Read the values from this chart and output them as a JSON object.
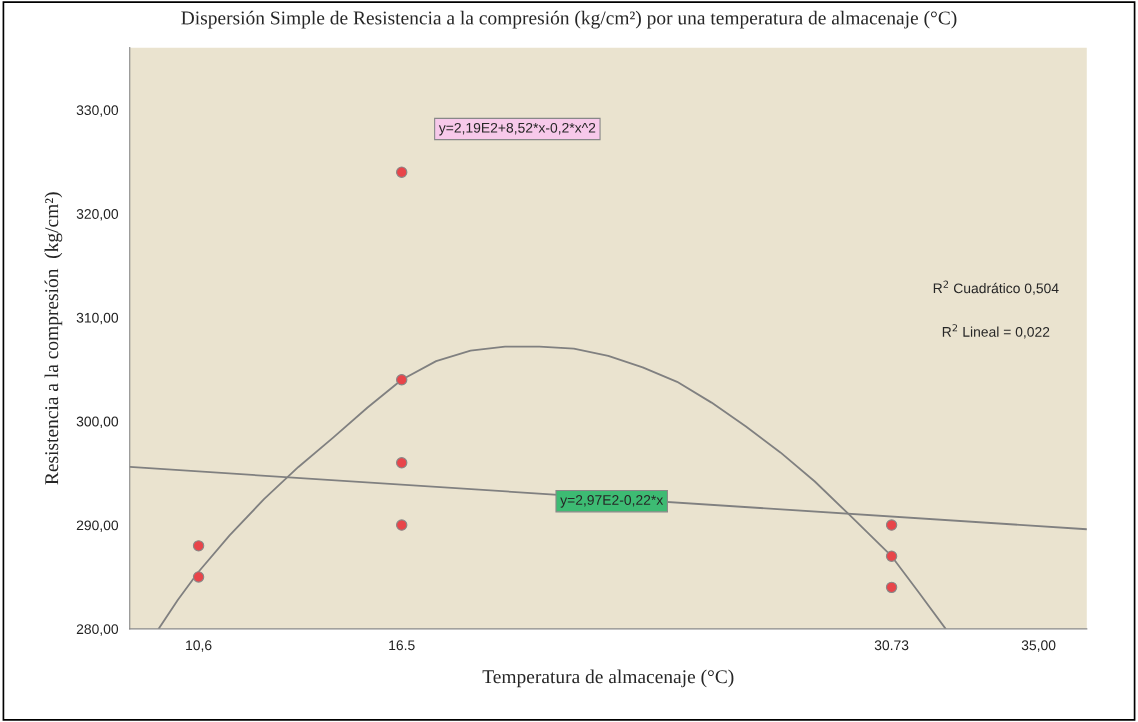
{
  "chart_data": {
    "type": "scatter",
    "title": "Dispersión Simple de Resistencia a la compresión (kg/cm²) por una temperatura de almacenaje (°C)",
    "xlabel": "Temperatura de almacenaje (°C)",
    "ylabel": "Resistencia a la compresión  (kg/cm²)",
    "series": [
      {
        "color": "#e8454a",
        "marker": "circle",
        "x": [
          10.6,
          10.6,
          16.5,
          16.5,
          16.5,
          16.5,
          30.73,
          30.73,
          30.73
        ],
        "values": [
          288,
          285,
          324,
          304,
          296,
          290,
          290,
          287,
          284
        ]
      },
      {
        "type": "line",
        "color": "#808080",
        "x": [
          9.44,
          10,
          10.6,
          11.5,
          12.5,
          13.5,
          14.5,
          15.5,
          16.5,
          17.5,
          18.5,
          19.5,
          20.5,
          21.5,
          22.5,
          23.5,
          24.5,
          25.5,
          26.5,
          27.5,
          28.5,
          29.5,
          30.73,
          31.5,
          32.3
        ],
        "values": [
          280,
          282.8,
          285.5,
          289,
          292.5,
          295.6,
          298.4,
          301.3,
          304,
          305.8,
          306.8,
          307.2,
          307.2,
          307,
          306.3,
          305.2,
          303.8,
          301.8,
          299.5,
          297,
          294.2,
          291,
          287,
          283.6,
          280
        ]
      },
      {
        "type": "line",
        "color": "#808080",
        "x": [
          8.6,
          36.4
        ],
        "values": [
          295.6,
          289.6
        ]
      }
    ],
    "annotations": [
      "y=2,19E2+8,52*x-0,2*x^2",
      {
        "text": "y=2,97E2-0,22*x",
        "x": 22.6,
        "y": 292.3
      },
      "R$^{2}$ Cuadrático 0,504",
      "R$^{2}$ Lineal = 0,022"
    ],
    "xlim": [
      8.6,
      36.4
    ],
    "ylim": [
      280,
      336
    ],
    "xticks": [
      {
        "value": 10.6,
        "label": "10,6"
      },
      16.5,
      30.73,
      {
        "value": 35,
        "label": "35,00"
      }
    ],
    "yticks": [
      {
        "value": 280,
        "label": "280,00"
      },
      {
        "value": 290,
        "label": "290,00"
      },
      {
        "value": 300,
        "label": "300,00"
      },
      {
        "value": 310,
        "label": "310,00"
      },
      {
        "value": 320,
        "label": "320,00"
      },
      {
        "value": 330,
        "label": "330,00"
      }
    ],
    "grid": false,
    "legend": false
  }
}
